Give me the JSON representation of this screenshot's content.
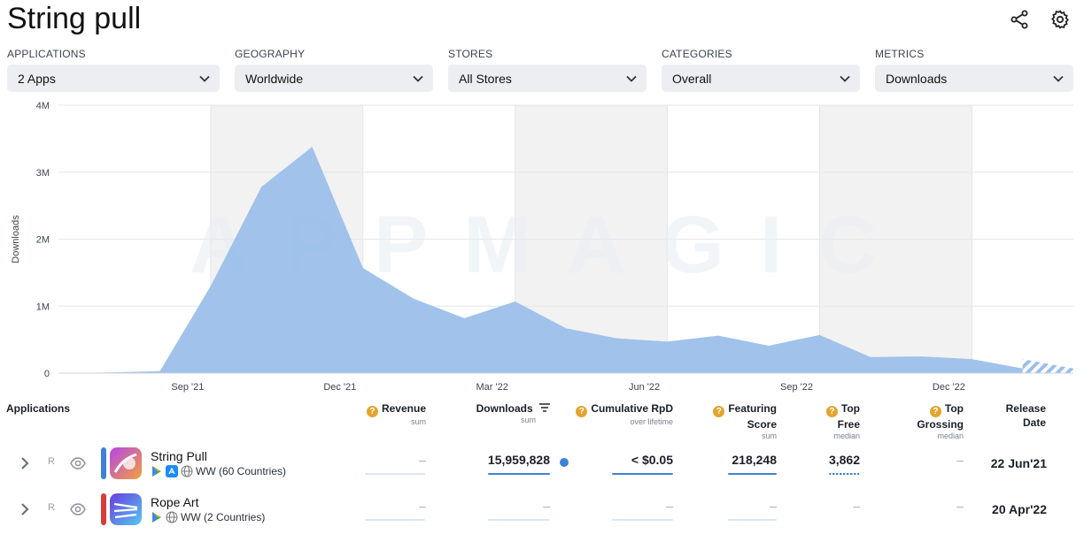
{
  "page": {
    "title": "String pull"
  },
  "toolbar": {
    "share_icon": "share-icon",
    "settings_icon": "gear-icon"
  },
  "filters": [
    {
      "label": "APPLICATIONS",
      "value": "2 Apps"
    },
    {
      "label": "GEOGRAPHY",
      "value": "Worldwide"
    },
    {
      "label": "STORES",
      "value": "All Stores"
    },
    {
      "label": "CATEGORIES",
      "value": "Overall"
    },
    {
      "label": "METRICS",
      "value": "Downloads"
    }
  ],
  "chart_data": {
    "type": "area",
    "ylabel": "Downloads",
    "watermark": "APPMAGIC",
    "ylim": [
      0,
      4000000
    ],
    "yticks": [
      0,
      1000000,
      2000000,
      3000000,
      4000000
    ],
    "ytick_labels": [
      "0",
      "1M",
      "2M",
      "3M",
      "4M"
    ],
    "x": [
      "Jun '21",
      "Jul '21",
      "Aug '21",
      "Sep '21",
      "Oct '21",
      "Nov '21",
      "Dec '21",
      "Jan '22",
      "Feb '22",
      "Mar '22",
      "Apr '22",
      "May '22",
      "Jun '22",
      "Jul '22",
      "Aug '22",
      "Sep '22",
      "Oct '22",
      "Nov '22",
      "Dec '22",
      "Jan '23",
      "Feb '23"
    ],
    "xtick_labels": [
      "Sep '21",
      "Dec '21",
      "Mar '22",
      "Jun '22",
      "Sep '22",
      "Dec '22"
    ],
    "xtick_index": [
      3,
      6,
      9,
      12,
      15,
      18
    ],
    "series": [
      {
        "values": [
          0,
          10000,
          30000,
          1300000,
          2780000,
          3380000,
          1570000,
          1110000,
          820000,
          1070000,
          670000,
          520000,
          470000,
          560000,
          410000,
          570000,
          240000,
          250000,
          210000,
          70000,
          null
        ]
      }
    ],
    "projection_from_index": 19,
    "projection_values": [
      210000,
      70000
    ],
    "colors": {
      "fill": "#9bbfea",
      "grid": "#e4e6ea",
      "shade": "#f2f2f2"
    }
  },
  "table": {
    "headers": {
      "applications": "Applications",
      "revenue": "Revenue",
      "revenue_sub": "sum",
      "downloads": "Downloads",
      "downloads_sub": "sum",
      "rpd": "Cumulative RpD",
      "rpd_sub": "over lifetime",
      "featuring": "Featuring",
      "featuring2": "Score",
      "featuring_sub": "sum",
      "topfree": "Top",
      "topfree2": "Free",
      "topfree_sub": "median",
      "topgross": "Top",
      "topgross2": "Grossing",
      "topgross_sub": "median",
      "release": "Release",
      "release2": "Date"
    },
    "rows": [
      {
        "name": "String Pull",
        "badge": "R",
        "geo": "WW (60 Countries)",
        "color": "#3d82d6",
        "revenue": "–",
        "downloads": "15,959,828",
        "rpd": "< $0.05",
        "featuring": "218,248",
        "topfree": "3,862",
        "topgross": "–",
        "release": "22 Jun'21"
      },
      {
        "name": "Rope Art",
        "badge": "R",
        "geo": "WW (2 Countries)",
        "color": "#d93a3a",
        "revenue": "–",
        "downloads": "–",
        "rpd": "–",
        "featuring": "–",
        "topfree": "–",
        "topgross": "–",
        "release": "20 Apr'22"
      }
    ]
  }
}
